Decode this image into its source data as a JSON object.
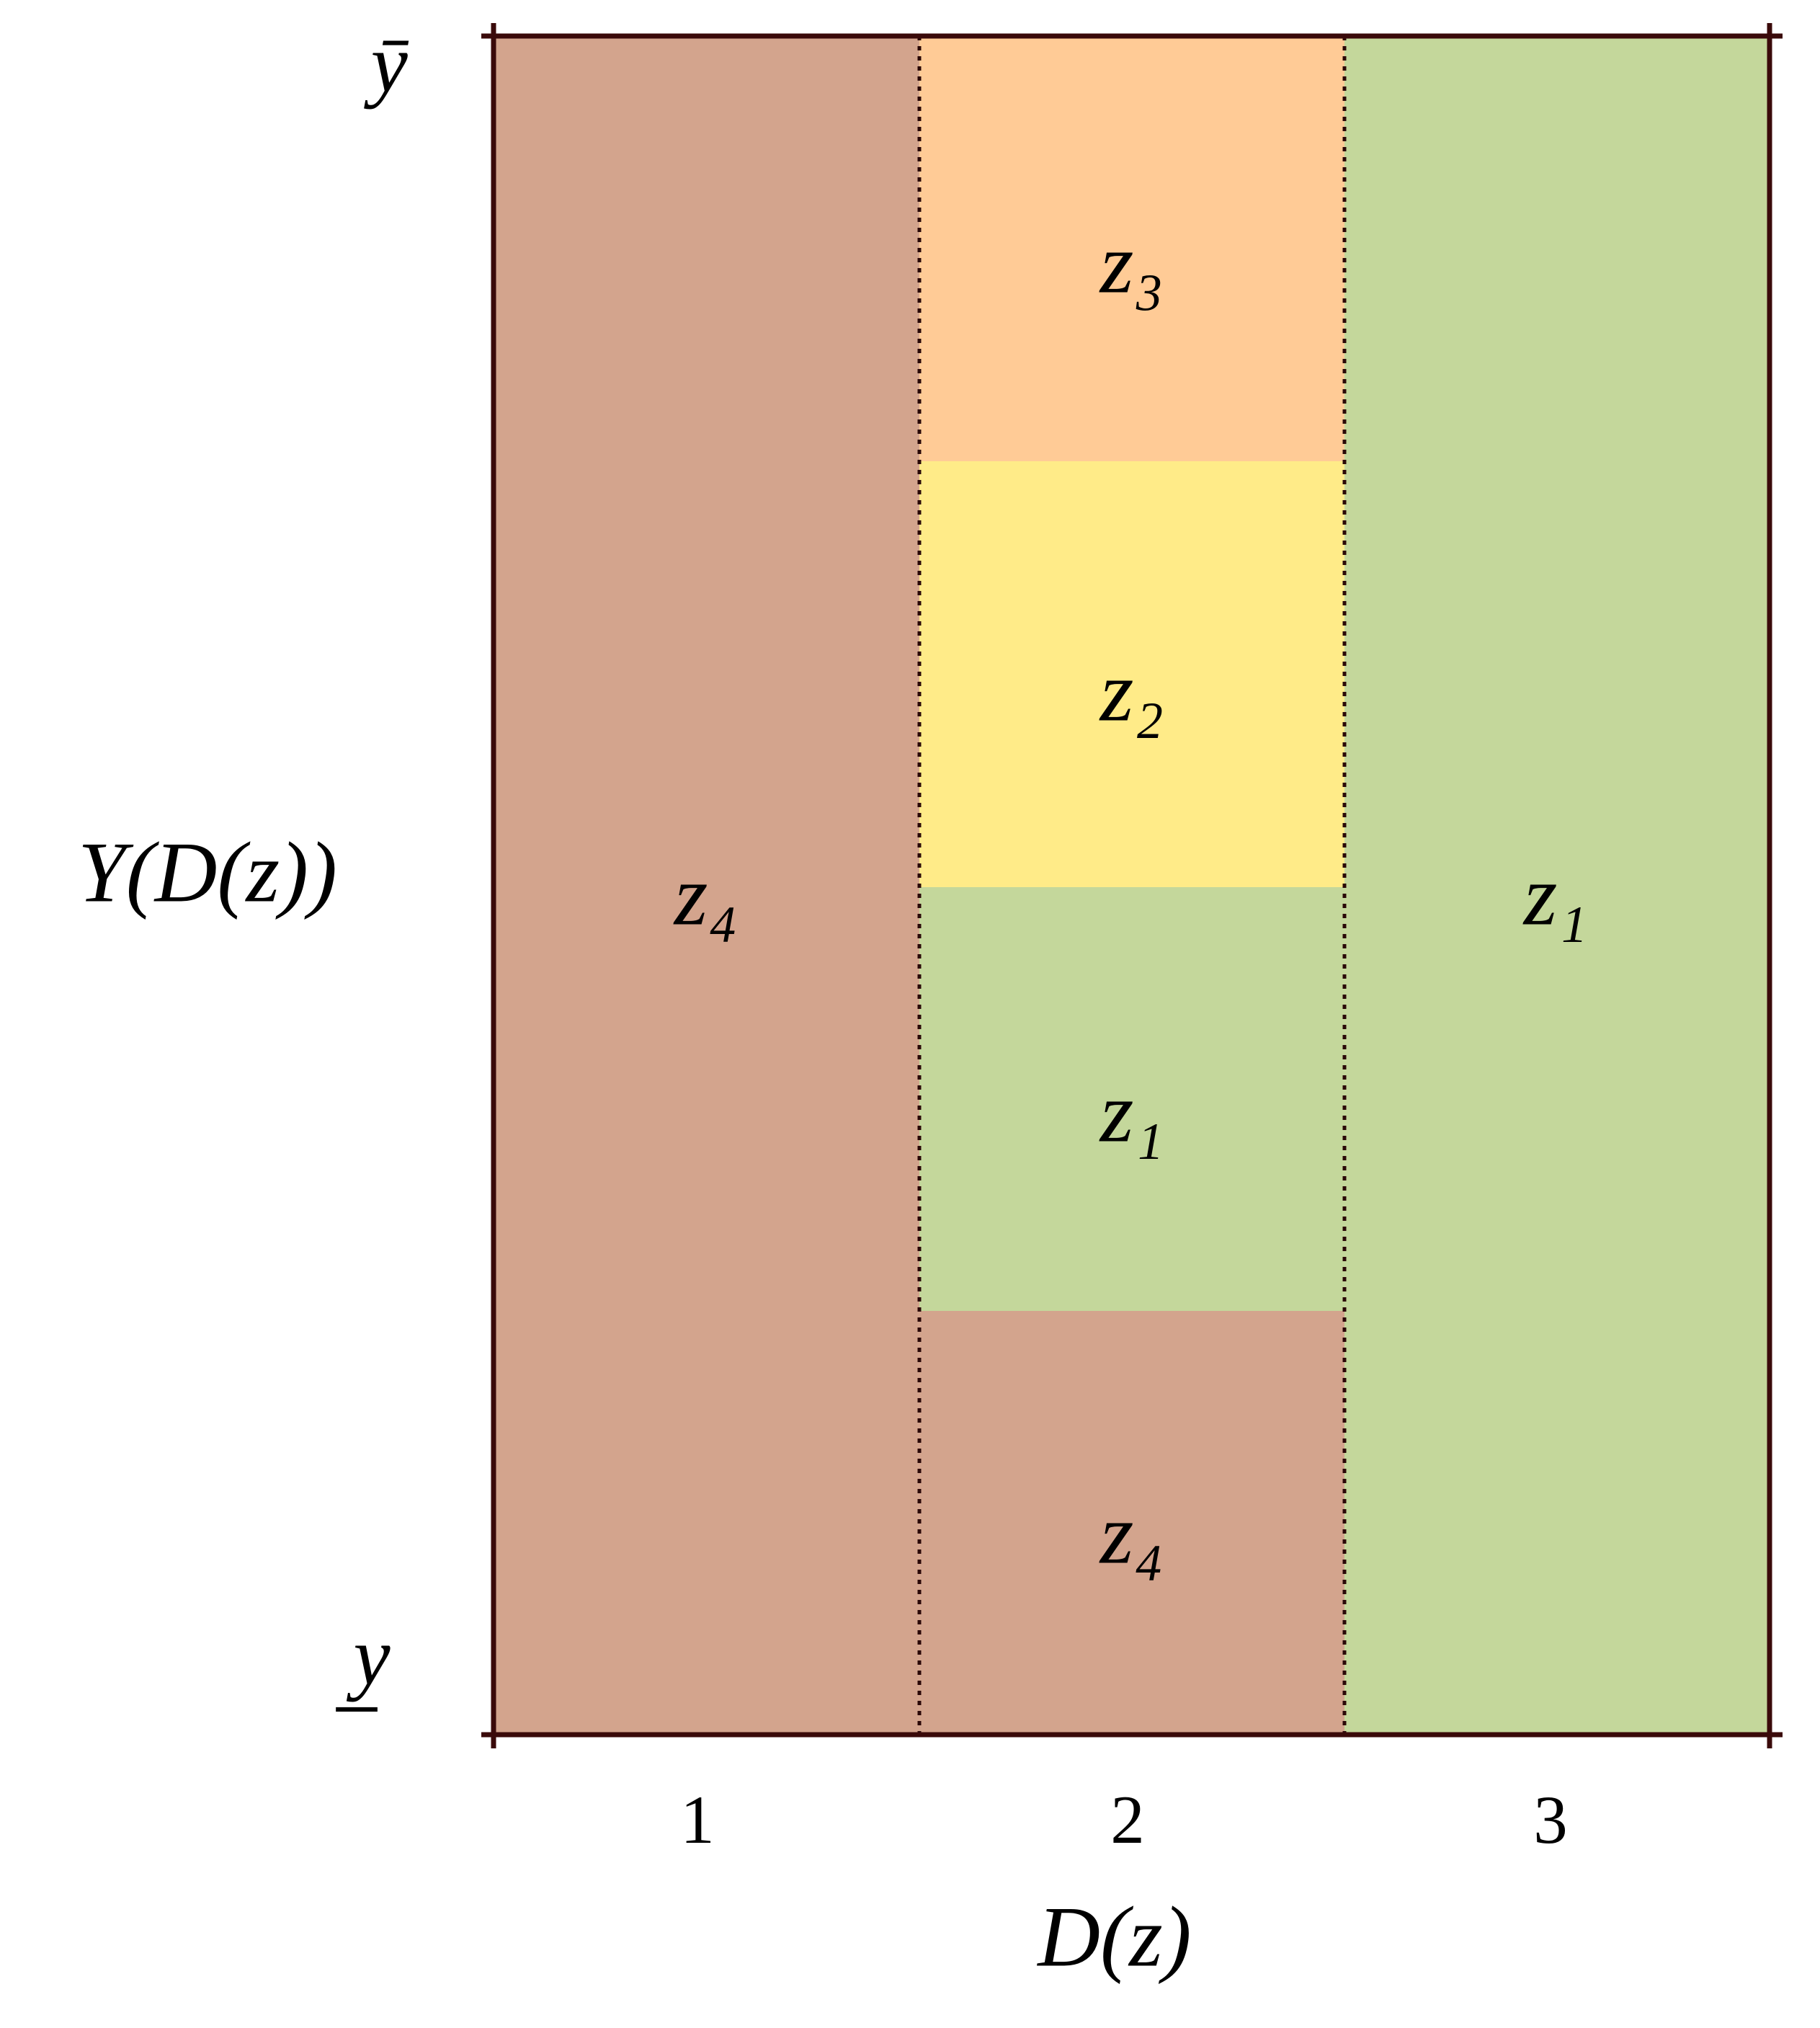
{
  "y_axis": {
    "label": "Y(D(z))",
    "top": "ȳ",
    "bottom": "y̲"
  },
  "x_axis": {
    "label": "D(z)",
    "ticks": [
      "1",
      "2",
      "3"
    ]
  },
  "columns": [
    {
      "cells": [
        {
          "label": "z₄"
        }
      ]
    },
    {
      "cells": [
        {
          "label": "z₃"
        },
        {
          "label": "z₂"
        },
        {
          "label": "z₁"
        },
        {
          "label": "z₄"
        }
      ]
    },
    {
      "cells": [
        {
          "label": "z₁"
        }
      ]
    }
  ]
}
